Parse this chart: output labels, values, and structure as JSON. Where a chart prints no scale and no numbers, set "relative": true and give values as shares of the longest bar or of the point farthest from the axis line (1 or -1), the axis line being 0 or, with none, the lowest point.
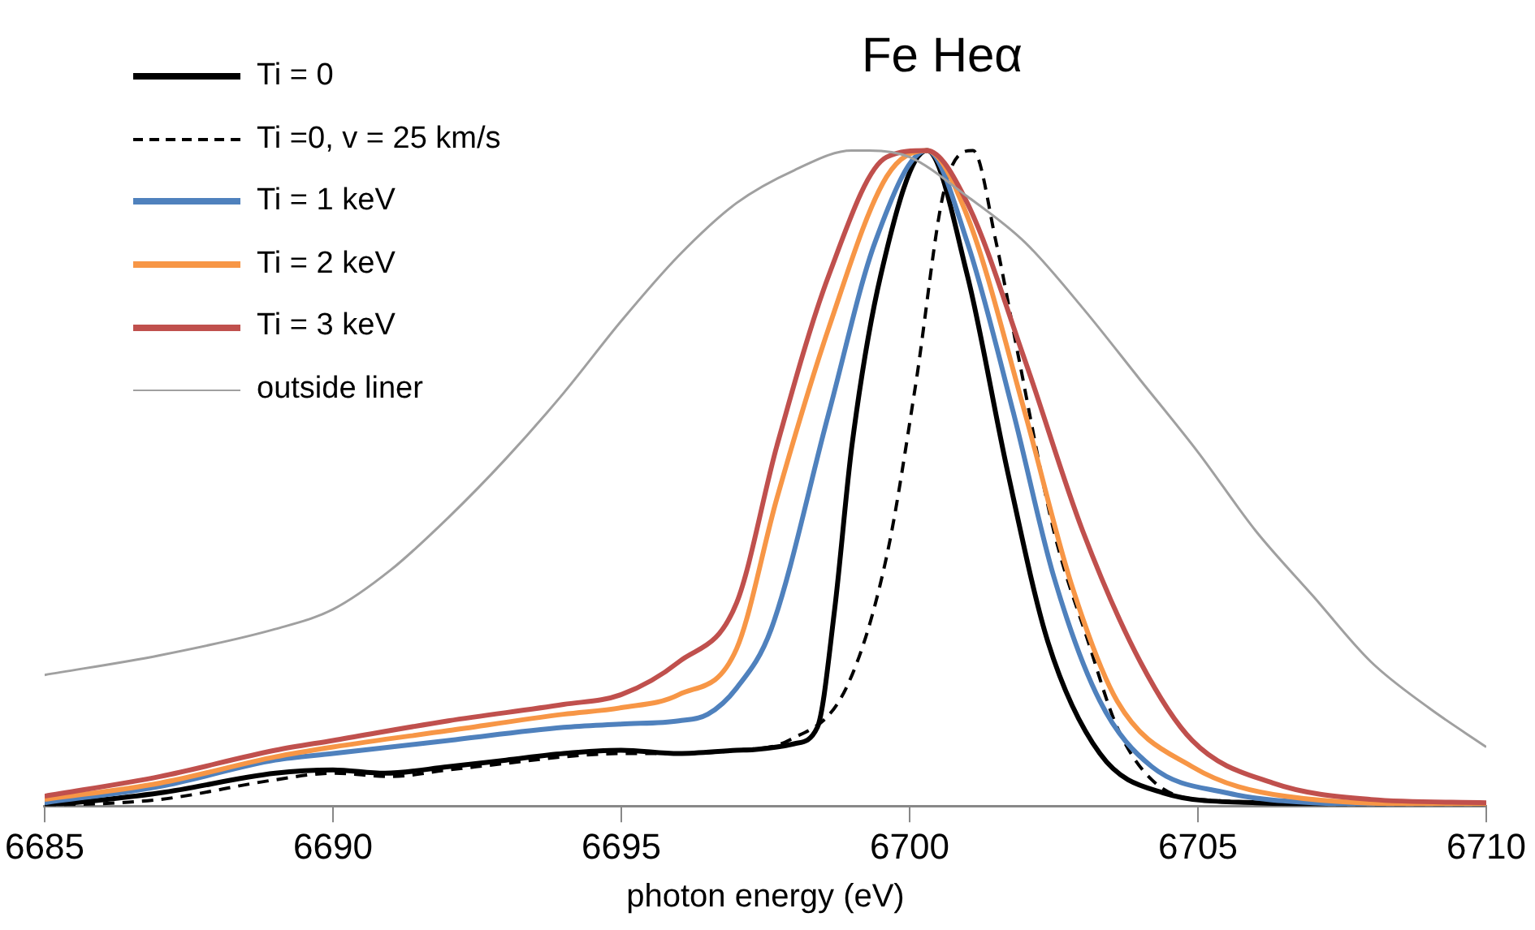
{
  "chart_data": {
    "type": "line",
    "title": "Fe Heα",
    "xlabel": "photon energy (eV)",
    "relative": true,
    "xlim": [
      6685,
      6710
    ],
    "xticks": [
      6685,
      6690,
      6695,
      6700,
      6705,
      6710
    ],
    "grid": false,
    "legend": "top left",
    "marker": "none",
    "series": [
      {
        "name": "Ti = 0",
        "color": "#000000",
        "line_style": "solid",
        "x": [
          6685,
          6687,
          6689,
          6690,
          6690.9,
          6692,
          6693,
          6694,
          6695,
          6696,
          6697,
          6697.3,
          6698,
          6698.4,
          6698.7,
          6699,
          6699.5,
          6700.3,
          6701,
          6701.7,
          6702.4,
          6703.3,
          6704.4,
          6706,
          6710
        ],
        "values": [
          0,
          0.02,
          0.05,
          0.055,
          0.05,
          0.06,
          0.07,
          0.08,
          0.085,
          0.08,
          0.085,
          0.086,
          0.095,
          0.12,
          0.3,
          0.55,
          0.81,
          1,
          0.81,
          0.51,
          0.25,
          0.08,
          0.02,
          0.005,
          0
        ]
      },
      {
        "name": "Ti =0, v = 25 km/s",
        "color": "#000000",
        "line_style": "dashed",
        "x": [
          6685,
          6687,
          6689,
          6690,
          6691,
          6692,
          6693,
          6694,
          6695,
          6696,
          6697,
          6697.9,
          6698.9,
          6699.6,
          6700.1,
          6700.6,
          6701.1,
          6701.5,
          6701.9,
          6702.5,
          6703.1,
          6703.6,
          6704.2,
          6705,
          6710
        ],
        "values": [
          0,
          0.01,
          0.04,
          0.05,
          0.045,
          0.055,
          0.065,
          0.075,
          0.08,
          0.08,
          0.085,
          0.1,
          0.18,
          0.38,
          0.64,
          0.94,
          1,
          0.86,
          0.68,
          0.42,
          0.25,
          0.12,
          0.04,
          0.01,
          0
        ]
      },
      {
        "name": "Ti = 1 keV",
        "color": "#4f81bd",
        "line_style": "solid",
        "x": [
          6685,
          6687,
          6689,
          6690,
          6692,
          6694,
          6695,
          6696,
          6696.5,
          6697,
          6697.6,
          6698.6,
          6699.4,
          6700.3,
          6701,
          6701.8,
          6702.5,
          6703.3,
          6704.2,
          6705.5,
          6707,
          6710
        ],
        "values": [
          0.005,
          0.03,
          0.07,
          0.08,
          0.1,
          0.12,
          0.125,
          0.13,
          0.14,
          0.18,
          0.27,
          0.6,
          0.86,
          1,
          0.86,
          0.6,
          0.35,
          0.16,
          0.06,
          0.02,
          0.005,
          0
        ]
      },
      {
        "name": "Ti = 2 keV",
        "color": "#f79646",
        "line_style": "solid",
        "x": [
          6685,
          6687,
          6689,
          6690,
          6692,
          6694,
          6695,
          6696,
          6697,
          6697.7,
          6698.6,
          6699.6,
          6700.3,
          6701,
          6702,
          6702.8,
          6703.6,
          6704.9,
          6706.5,
          6710
        ],
        "values": [
          0.01,
          0.035,
          0.075,
          0.09,
          0.115,
          0.14,
          0.15,
          0.17,
          0.24,
          0.47,
          0.73,
          0.96,
          1,
          0.9,
          0.6,
          0.34,
          0.16,
          0.06,
          0.015,
          0
        ]
      },
      {
        "name": "Ti = 3 keV",
        "color": "#c0504d",
        "line_style": "solid",
        "x": [
          6685,
          6687,
          6689,
          6690,
          6692,
          6694,
          6695,
          6696,
          6697,
          6697.7,
          6698.6,
          6699.6,
          6700.3,
          6701,
          6702,
          6703,
          6704,
          6704.9,
          6706.3,
          6708,
          6710
        ],
        "values": [
          0.015,
          0.045,
          0.085,
          0.1,
          0.13,
          0.155,
          0.17,
          0.22,
          0.31,
          0.55,
          0.81,
          0.99,
          1,
          0.92,
          0.68,
          0.42,
          0.22,
          0.1,
          0.035,
          0.01,
          0.005
        ]
      },
      {
        "name": "outside liner",
        "color": "#a0a0a0",
        "line_style": "solid",
        "x": [
          6685,
          6687,
          6689,
          6690,
          6691,
          6692,
          6693,
          6694,
          6695,
          6696,
          6697,
          6698,
          6699,
          6699.3,
          6700,
          6701,
          6702,
          6703,
          6704,
          6705,
          6706,
          6707,
          6708,
          6709,
          6710
        ],
        "values": [
          0.2,
          0.23,
          0.27,
          0.3,
          0.36,
          0.44,
          0.53,
          0.63,
          0.74,
          0.84,
          0.92,
          0.97,
          1,
          1,
          0.99,
          0.93,
          0.86,
          0.76,
          0.65,
          0.54,
          0.42,
          0.32,
          0.22,
          0.15,
          0.09
        ]
      }
    ]
  }
}
